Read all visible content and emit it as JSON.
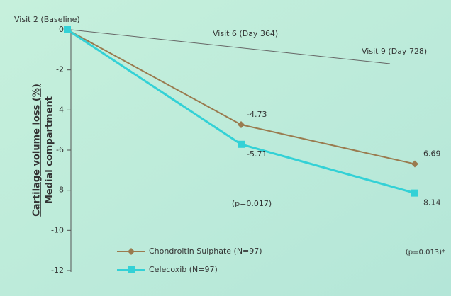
{
  "chart_data": {
    "type": "line",
    "categories": [
      "Visit 2 (Baseline)",
      "Visit 6 (Day 364)",
      "Visit 9 (Day 728)"
    ],
    "series": [
      {
        "name": "Chondroitin Sulphate (N=97)",
        "color": "#9a7b4f",
        "marker": "diamond",
        "values": [
          0,
          -4.73,
          -6.69
        ]
      },
      {
        "name": "Celecoxib (N=97)",
        "color": "#33d1d6",
        "marker": "square",
        "values": [
          0,
          -5.71,
          -8.14
        ]
      }
    ],
    "ylabel": "Cartilage volume loss (%)",
    "ylabel2": "Medial compartment",
    "ylim": [
      -12,
      0
    ],
    "yticks": [
      0,
      -2,
      -4,
      -6,
      -8,
      -10,
      -12
    ],
    "annotations": [
      "(p=0.017)",
      "(p=0.013)*"
    ],
    "legend": "bottom-left"
  }
}
